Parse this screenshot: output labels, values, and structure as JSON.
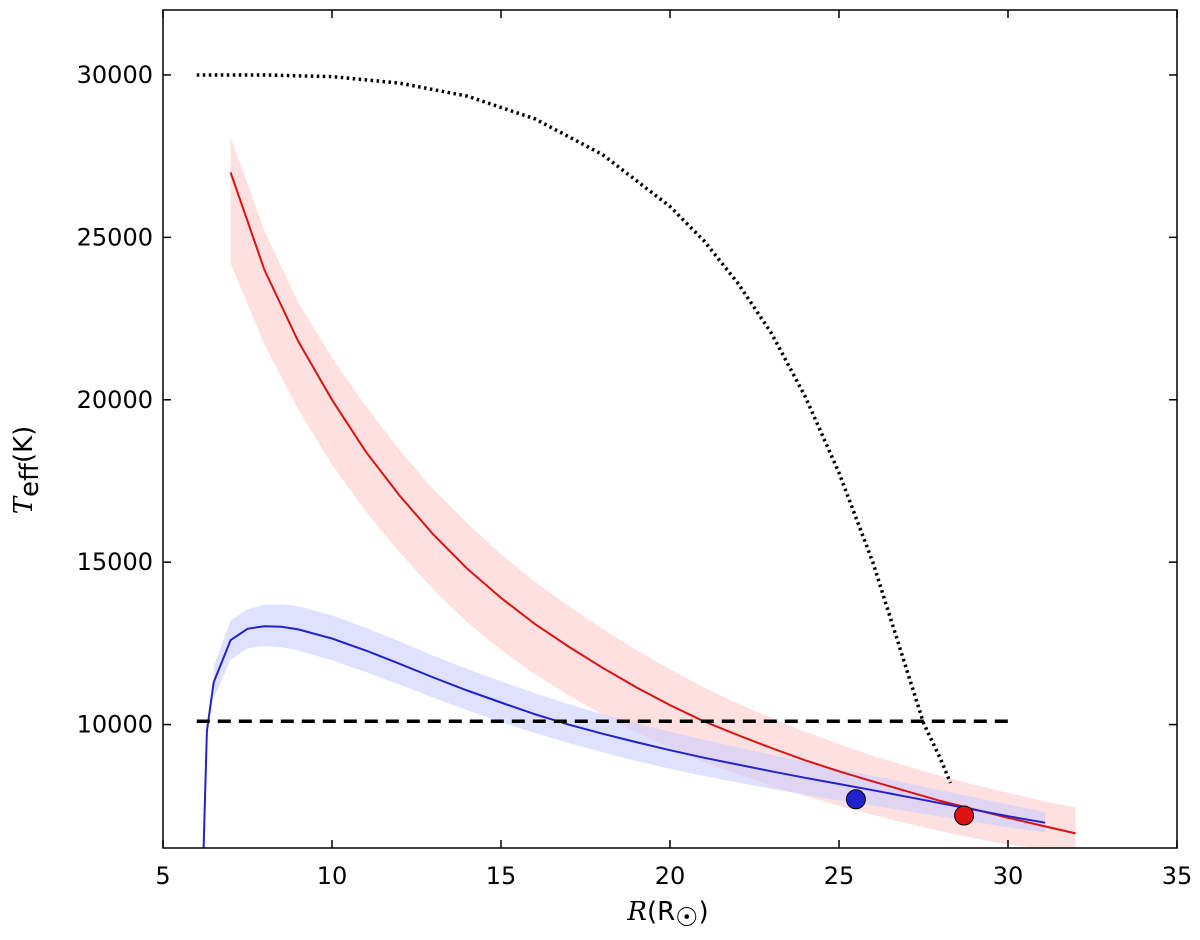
{
  "chart_data": {
    "type": "line",
    "title": "",
    "xlabel": {
      "symbol": "R",
      "unit": "(R",
      "sub": "☉",
      "close": ")"
    },
    "ylabel": {
      "symbol": "T",
      "sub": "eff",
      "unit": "(K)"
    },
    "xlim": [
      5,
      35
    ],
    "ylim": [
      6200,
      32000
    ],
    "xticks": [
      5,
      10,
      15,
      20,
      25,
      30,
      35
    ],
    "yticks": [
      10000,
      15000,
      20000,
      25000,
      30000
    ],
    "grid": false,
    "colors": {
      "red": "#dd1111",
      "red_band": "#ffcccc",
      "blue": "#2222cc",
      "blue_band": "#ccccff",
      "black": "#000000"
    },
    "series": [
      {
        "style": "solid",
        "color": "red",
        "x": [
          7,
          8,
          9,
          10,
          11,
          12,
          13,
          14,
          15,
          16,
          17,
          18,
          19,
          20,
          21,
          22,
          23,
          24,
          25,
          26,
          27,
          28,
          29,
          30,
          31,
          32
        ],
        "y": [
          27000,
          24000,
          21800,
          20000,
          18400,
          17050,
          15850,
          14800,
          13900,
          13100,
          12400,
          11750,
          11150,
          10600,
          10100,
          9680,
          9280,
          8900,
          8560,
          8250,
          7950,
          7650,
          7390,
          7130,
          6890,
          6650
        ],
        "band_upper": [
          28100,
          25200,
          23000,
          21300,
          19800,
          18450,
          17250,
          16200,
          15250,
          14400,
          13650,
          12950,
          12300,
          11700,
          11150,
          10650,
          10200,
          9780,
          9400,
          9040,
          8720,
          8420,
          8150,
          7900,
          7660,
          7440
        ],
        "band_lower": [
          24200,
          21700,
          19700,
          18000,
          16550,
          15300,
          14150,
          13150,
          12300,
          11550,
          10900,
          10300,
          9760,
          9280,
          8850,
          8470,
          8120,
          7800,
          7500,
          7220,
          6960,
          6720,
          6500,
          6300,
          6200,
          6200
        ]
      },
      {
        "style": "solid",
        "color": "blue",
        "x": [
          6.2,
          6.3,
          6.5,
          7,
          7.5,
          8,
          8.5,
          9,
          10,
          11,
          12,
          13,
          14,
          15,
          16,
          17,
          18,
          19,
          20,
          21,
          22,
          23,
          24,
          25,
          26,
          27,
          28,
          29,
          30,
          31.1
        ],
        "y": [
          6200,
          9800,
          11300,
          12600,
          12950,
          13030,
          13010,
          12930,
          12650,
          12280,
          11870,
          11450,
          11050,
          10680,
          10320,
          10000,
          9720,
          9460,
          9210,
          8980,
          8770,
          8560,
          8360,
          8170,
          7980,
          7780,
          7580,
          7380,
          7180,
          6980
        ],
        "band_upper": [
          null,
          null,
          11800,
          13200,
          13550,
          13690,
          13700,
          13640,
          13360,
          12980,
          12560,
          12120,
          11710,
          11330,
          10970,
          10630,
          10320,
          10040,
          9780,
          9530,
          9300,
          9070,
          8850,
          8640,
          8420,
          8200,
          7980,
          7760,
          7540,
          7300
        ],
        "band_lower": [
          null,
          null,
          10800,
          12000,
          12350,
          12420,
          12380,
          12280,
          11980,
          11620,
          11230,
          10830,
          10440,
          10080,
          9740,
          9430,
          9150,
          8880,
          8640,
          8420,
          8220,
          8020,
          7840,
          7660,
          7500,
          7340,
          7170,
          7000,
          6840,
          6680
        ]
      },
      {
        "style": "dashed",
        "color": "black",
        "x": [
          6,
          30
        ],
        "y": [
          10100,
          10100
        ]
      },
      {
        "style": "dotted",
        "color": "black",
        "x": [
          6,
          8,
          10,
          12,
          14,
          16,
          18,
          20,
          21,
          22,
          23,
          24,
          25,
          26,
          27,
          27.5,
          28,
          28.3
        ],
        "y": [
          30000,
          30000,
          29950,
          29750,
          29350,
          28650,
          27550,
          25950,
          24900,
          23600,
          22050,
          20100,
          17750,
          15000,
          11700,
          10050,
          8950,
          8200
        ]
      }
    ],
    "points": [
      {
        "x": 25.5,
        "y": 7700,
        "color": "blue"
      },
      {
        "x": 28.7,
        "y": 7200,
        "color": "red"
      }
    ]
  }
}
